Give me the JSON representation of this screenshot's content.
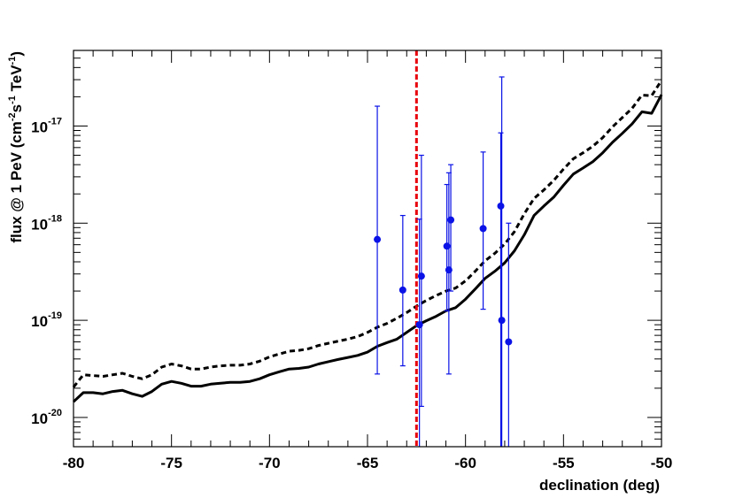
{
  "chart_data": {
    "type": "line",
    "title": "",
    "xlabel": "declination (deg)",
    "ylabel_parts": {
      "prefix": "flux @ 1 PeV (cm",
      "exp1": "-2",
      "mid1": "s",
      "exp2": "-1",
      "mid2": " TeV",
      "exp3": "-1",
      "suffix": ")"
    },
    "xlim": [
      -80,
      -50
    ],
    "ylim": [
      5e-21,
      6e-17
    ],
    "y_scale": "log",
    "x_ticks": [
      -80,
      -75,
      -70,
      -65,
      -60,
      -55,
      -50
    ],
    "y_ticks": [
      {
        "base": "10",
        "exp": "-20",
        "value": 1e-20
      },
      {
        "base": "10",
        "exp": "-19",
        "value": 1e-19
      },
      {
        "base": "10",
        "exp": "-18",
        "value": 1e-18
      },
      {
        "base": "10",
        "exp": "-17",
        "value": 1e-17
      }
    ],
    "grid": false,
    "vertical_line": {
      "x": -62.5,
      "color": "#e8000b",
      "style": "dashed"
    },
    "series": [
      {
        "style": "solid",
        "color": "#000000",
        "x": [
          -80.0,
          -79.5,
          -79.0,
          -78.5,
          -78.0,
          -77.5,
          -77.0,
          -76.5,
          -76.0,
          -75.5,
          -75.0,
          -74.5,
          -74.0,
          -73.5,
          -73.0,
          -72.5,
          -72.0,
          -71.5,
          -71.0,
          -70.5,
          -70.0,
          -69.5,
          -69.0,
          -68.5,
          -68.0,
          -67.5,
          -67.0,
          -66.5,
          -66.0,
          -65.5,
          -65.0,
          -64.5,
          -64.0,
          -63.5,
          -63.0,
          -62.5,
          -62.0,
          -61.5,
          -61.0,
          -60.5,
          -60.0,
          -59.5,
          -59.0,
          -58.5,
          -58.0,
          -57.5,
          -57.0,
          -56.5,
          -56.0,
          -55.5,
          -55.0,
          -54.5,
          -54.0,
          -53.5,
          -53.0,
          -52.5,
          -52.0,
          -51.5,
          -51.0,
          -50.5,
          -50.0
        ],
        "y": [
          1.45e-20,
          1.8e-20,
          1.8e-20,
          1.75e-20,
          1.85e-20,
          1.9e-20,
          1.75e-20,
          1.65e-20,
          1.85e-20,
          2.2e-20,
          2.35e-20,
          2.25e-20,
          2.1e-20,
          2.1e-20,
          2.2e-20,
          2.25e-20,
          2.3e-20,
          2.3e-20,
          2.35e-20,
          2.5e-20,
          2.75e-20,
          2.95e-20,
          3.15e-20,
          3.2e-20,
          3.3e-20,
          3.55e-20,
          3.75e-20,
          3.95e-20,
          4.15e-20,
          4.35e-20,
          4.7e-20,
          5.4e-20,
          5.9e-20,
          6.4e-20,
          7.5e-20,
          8.8e-20,
          9.9e-20,
          1.1e-19,
          1.25e-19,
          1.35e-19,
          1.65e-19,
          2.1e-19,
          2.7e-19,
          3.2e-19,
          3.9e-19,
          5.2e-19,
          7.6e-19,
          1.2e-18,
          1.5e-18,
          1.85e-18,
          2.45e-18,
          3.2e-18,
          3.7e-18,
          4.3e-18,
          5.3e-18,
          6.8e-18,
          8.4e-18,
          1.05e-17,
          1.4e-17,
          1.35e-17,
          2.1e-17
        ]
      },
      {
        "style": "dashed",
        "color": "#000000",
        "x": [
          -80.0,
          -79.5,
          -79.0,
          -78.5,
          -78.0,
          -77.5,
          -77.0,
          -76.5,
          -76.0,
          -75.5,
          -75.0,
          -74.5,
          -74.0,
          -73.5,
          -73.0,
          -72.5,
          -72.0,
          -71.5,
          -71.0,
          -70.5,
          -70.0,
          -69.5,
          -69.0,
          -68.5,
          -68.0,
          -67.5,
          -67.0,
          -66.5,
          -66.0,
          -65.5,
          -65.0,
          -64.5,
          -64.0,
          -63.5,
          -63.0,
          -62.5,
          -62.0,
          -61.5,
          -61.0,
          -60.5,
          -60.0,
          -59.5,
          -59.0,
          -58.5,
          -58.0,
          -57.5,
          -57.0,
          -56.5,
          -56.0,
          -55.5,
          -55.0,
          -54.5,
          -54.0,
          -53.5,
          -53.0,
          -52.5,
          -52.0,
          -51.5,
          -51.0,
          -50.5,
          -50.0
        ],
        "y": [
          2.05e-20,
          2.75e-20,
          2.7e-20,
          2.65e-20,
          2.75e-20,
          2.85e-20,
          2.65e-20,
          2.5e-20,
          2.75e-20,
          3.3e-20,
          3.55e-20,
          3.4e-20,
          3.15e-20,
          3.15e-20,
          3.3e-20,
          3.4e-20,
          3.45e-20,
          3.45e-20,
          3.55e-20,
          3.8e-20,
          4.2e-20,
          4.5e-20,
          4.8e-20,
          4.9e-20,
          5.1e-20,
          5.5e-20,
          5.8e-20,
          6.1e-20,
          6.4e-20,
          6.8e-20,
          7.5e-20,
          8.5e-20,
          9.3e-20,
          1.05e-19,
          1.2e-19,
          1.4e-19,
          1.6e-19,
          1.8e-19,
          2e-19,
          2.15e-19,
          2.55e-19,
          3.2e-19,
          4.1e-19,
          4.9e-19,
          6.1e-19,
          8.2e-19,
          1.25e-18,
          1.8e-18,
          2.2e-18,
          2.75e-18,
          3.6e-18,
          4.6e-18,
          5.3e-18,
          6.2e-18,
          7.6e-18,
          9.8e-18,
          1.22e-17,
          1.52e-17,
          2.08e-17,
          2.05e-17,
          2.95e-17
        ]
      }
    ],
    "points": {
      "color": "#0a12e6",
      "data": [
        {
          "x": -64.5,
          "y": 6.8e-19,
          "ylo": 2.8e-20,
          "yhi": 1.6e-17
        },
        {
          "x": -63.2,
          "y": 2.05e-19,
          "ylo": 3.4e-20,
          "yhi": 1.2e-18
        },
        {
          "x": -62.35,
          "y": 9e-20,
          "ylo": 5e-21,
          "yhi": 1.1e-18
        },
        {
          "x": -62.25,
          "y": 2.85e-19,
          "ylo": 1.3e-20,
          "yhi": 5e-18
        },
        {
          "x": -60.95,
          "y": 5.8e-19,
          "ylo": 1.25e-19,
          "yhi": 2.5e-18
        },
        {
          "x": -60.85,
          "y": 3.3e-19,
          "ylo": 2.8e-20,
          "yhi": 3.3e-18
        },
        {
          "x": -60.75,
          "y": 1.08e-18,
          "ylo": 2e-19,
          "yhi": 4e-18
        },
        {
          "x": -59.1,
          "y": 8.8e-19,
          "ylo": 1.3e-19,
          "yhi": 5.4e-18
        },
        {
          "x": -58.2,
          "y": 1.5e-18,
          "ylo": 5e-21,
          "yhi": 8.5e-18
        },
        {
          "x": -58.15,
          "y": 1e-19,
          "ylo": 5e-21,
          "yhi": 3.2e-17
        },
        {
          "x": -57.8,
          "y": 6e-20,
          "ylo": 5e-21,
          "yhi": 1e-18
        }
      ]
    }
  }
}
